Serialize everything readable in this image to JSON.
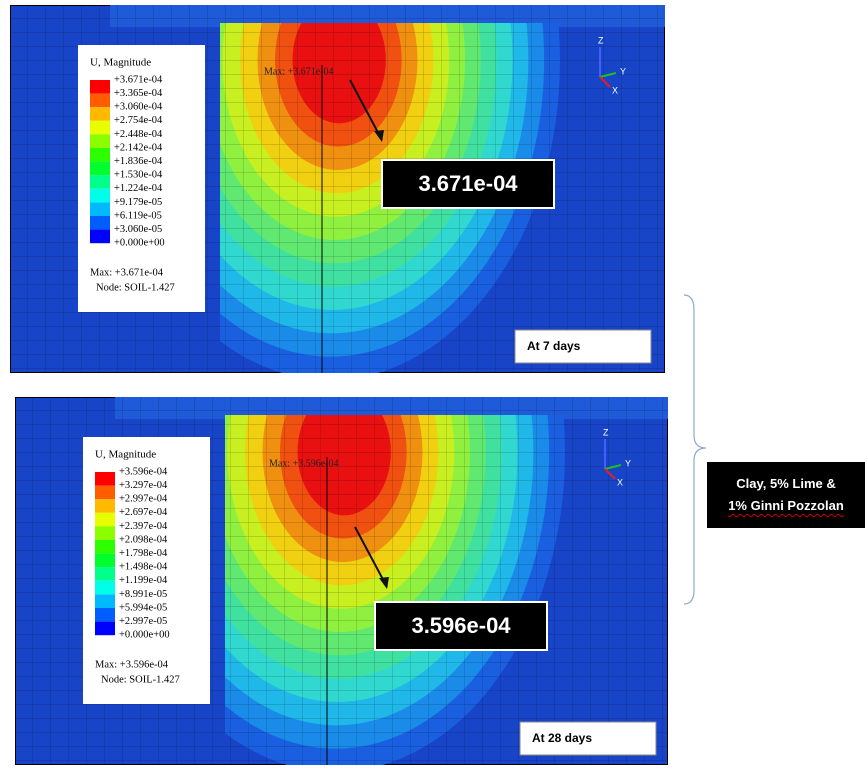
{
  "panels": [
    {
      "legend_title": "U, Magnitude",
      "legend_values": [
        "+3.671e-04",
        "+3.365e-04",
        "+3.060e-04",
        "+2.754e-04",
        "+2.448e-04",
        "+2.142e-04",
        "+1.836e-04",
        "+1.530e-04",
        "+1.224e-04",
        "+9.179e-05",
        "+6.119e-05",
        "+3.060e-05",
        "+0.000e+00"
      ],
      "max_label": "Max: +3.671e-04",
      "node_label": "Node: SOIL-1.427",
      "max_marker": "Max: +3.671e-04",
      "callout": "3.671e-04",
      "caption": "At 7 days",
      "axis_labels": [
        "Z",
        "Y",
        "X"
      ]
    },
    {
      "legend_title": "U, Magnitude",
      "legend_values": [
        "+3.596e-04",
        "+3.297e-04",
        "+2.997e-04",
        "+2.697e-04",
        "+2.397e-04",
        "+2.098e-04",
        "+1.798e-04",
        "+1.498e-04",
        "+1.199e-04",
        "+8.991e-05",
        "+5.994e-05",
        "+2.997e-05",
        "+0.000e+00"
      ],
      "max_label": "Max: +3.596e-04",
      "node_label": "Node: SOIL-1.427",
      "max_marker": "Max: +3.596e-04",
      "callout": "3.596e-04",
      "caption": "At 28 days",
      "axis_labels": [
        "Z",
        "Y",
        "X"
      ]
    }
  ],
  "side_label": [
    "Clay, 5% Lime &",
    "1% Ginni Pozzolan"
  ]
}
